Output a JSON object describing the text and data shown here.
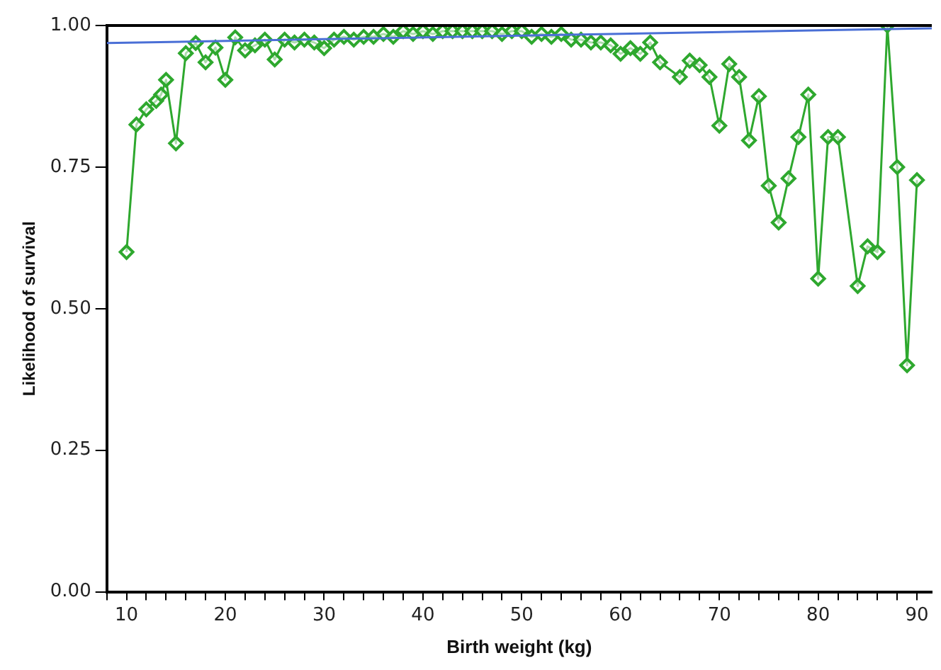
{
  "chart_data": {
    "type": "line",
    "xlabel": "Birth weight (kg)",
    "ylabel": "Likelihood of survival",
    "xlim": [
      8,
      91.5
    ],
    "ylim": [
      0,
      1
    ],
    "xticks": [
      {
        "value": 8,
        "label": null
      },
      10,
      {
        "value": 12,
        "label": null
      },
      {
        "value": 14,
        "label": null
      },
      {
        "value": 16,
        "label": null
      },
      {
        "value": 18,
        "label": null
      },
      20,
      {
        "value": 22,
        "label": null
      },
      {
        "value": 24,
        "label": null
      },
      {
        "value": 26,
        "label": null
      },
      {
        "value": 28,
        "label": null
      },
      30,
      {
        "value": 32,
        "label": null
      },
      {
        "value": 34,
        "label": null
      },
      {
        "value": 36,
        "label": null
      },
      {
        "value": 38,
        "label": null
      },
      40,
      {
        "value": 42,
        "label": null
      },
      {
        "value": 44,
        "label": null
      },
      {
        "value": 46,
        "label": null
      },
      {
        "value": 48,
        "label": null
      },
      50,
      {
        "value": 52,
        "label": null
      },
      {
        "value": 54,
        "label": null
      },
      {
        "value": 56,
        "label": null
      },
      {
        "value": 58,
        "label": null
      },
      60,
      {
        "value": 62,
        "label": null
      },
      {
        "value": 64,
        "label": null
      },
      {
        "value": 66,
        "label": null
      },
      {
        "value": 68,
        "label": null
      },
      70,
      {
        "value": 72,
        "label": null
      },
      {
        "value": 74,
        "label": null
      },
      {
        "value": 76,
        "label": null
      },
      {
        "value": 78,
        "label": null
      },
      80,
      {
        "value": 82,
        "label": null
      },
      {
        "value": 84,
        "label": null
      },
      {
        "value": 86,
        "label": null
      },
      {
        "value": 88,
        "label": null
      },
      90
    ],
    "yticks": [
      {
        "value": 0,
        "label": "0.00"
      },
      {
        "value": 0.25,
        "label": "0.25"
      },
      {
        "value": 0.5,
        "label": "0.50"
      },
      {
        "value": 0.75,
        "label": "0.75"
      },
      {
        "value": 1,
        "label": "1.00"
      }
    ],
    "grid": false,
    "legend": false,
    "series": [
      {
        "type": "line",
        "color": "#4a6fd6",
        "marker": "none",
        "x": [
          8,
          91.5
        ],
        "values": [
          0.969,
          0.995
        ]
      },
      {
        "type": "line",
        "color": "#2ea82e",
        "marker": "diamond",
        "x": [
          10,
          11,
          12,
          13,
          13.5,
          14,
          15,
          16,
          17,
          18,
          19,
          20,
          21,
          22,
          23,
          24,
          25,
          26,
          27,
          28,
          29,
          30,
          31,
          32,
          33,
          34,
          35,
          36,
          37,
          38,
          39,
          40,
          41,
          42,
          43,
          44,
          45,
          46,
          47,
          48,
          49,
          50,
          51,
          52,
          53,
          54,
          55,
          56,
          57,
          58,
          59,
          60,
          61,
          62,
          63,
          64,
          66,
          67,
          68,
          69,
          70,
          71,
          72,
          73,
          74,
          75,
          76,
          77,
          78,
          79,
          80,
          81,
          82,
          84,
          85,
          86,
          87,
          88,
          89,
          90
        ],
        "values": [
          0.6,
          0.825,
          0.852,
          0.867,
          0.878,
          0.904,
          0.792,
          0.951,
          0.969,
          0.935,
          0.961,
          0.904,
          0.979,
          0.956,
          0.965,
          0.975,
          0.94,
          0.975,
          0.97,
          0.975,
          0.97,
          0.96,
          0.975,
          0.98,
          0.975,
          0.98,
          0.98,
          0.985,
          0.98,
          0.99,
          0.985,
          0.99,
          0.985,
          0.99,
          0.99,
          0.99,
          0.99,
          0.99,
          0.99,
          0.985,
          0.99,
          0.99,
          0.98,
          0.985,
          0.98,
          0.985,
          0.975,
          0.975,
          0.97,
          0.97,
          0.965,
          0.95,
          0.96,
          0.95,
          0.97,
          0.935,
          0.909,
          0.938,
          0.93,
          0.909,
          0.823,
          0.932,
          0.909,
          0.797,
          0.875,
          0.717,
          0.652,
          0.73,
          0.803,
          0.878,
          0.553,
          0.803,
          0.803,
          0.54,
          0.61,
          0.6,
          1.0,
          0.75,
          0.4,
          0.727
        ]
      }
    ]
  }
}
